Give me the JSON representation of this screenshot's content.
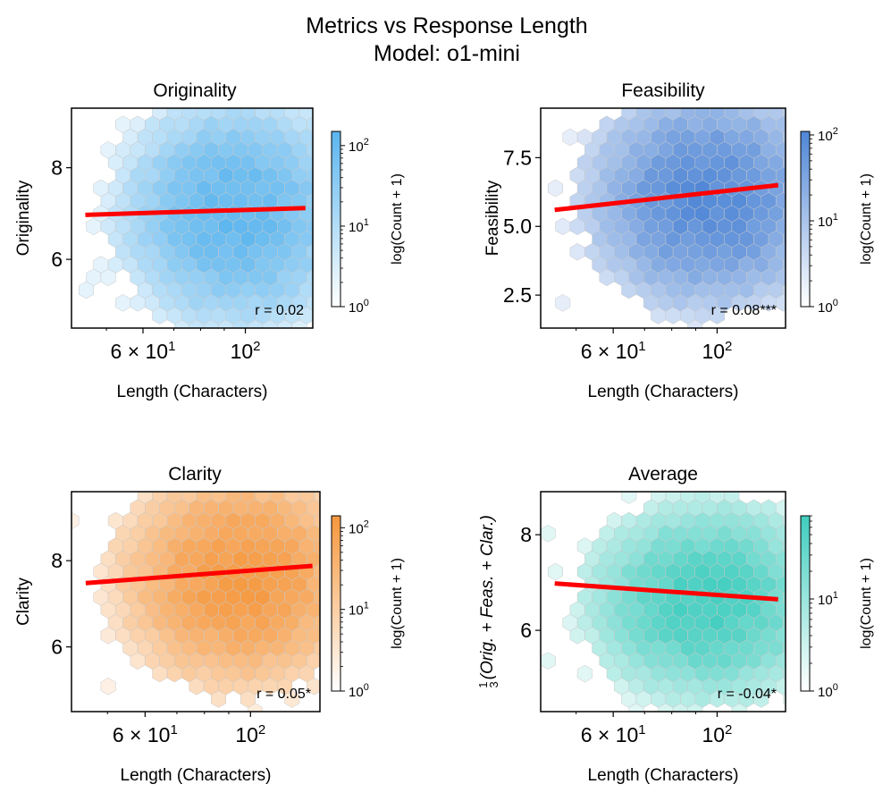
{
  "figure": {
    "title_line1": "Metrics vs Response Length",
    "title_line2": "Model: o1-mini"
  },
  "chart_data": [
    {
      "type": "hexbin",
      "title": "Originality",
      "xlabel": "Length (Characters)",
      "ylabel": "Originality",
      "x_scale": "log",
      "xlim": [
        42,
        140
      ],
      "ylim": [
        4.5,
        9.3
      ],
      "x_ticks": [
        {
          "value": 60,
          "label": "6 × 10",
          "sup": "1"
        },
        {
          "value": 100,
          "label": "10",
          "sup": "2"
        }
      ],
      "y_ticks": [
        {
          "value": 6,
          "label": "6"
        },
        {
          "value": 8,
          "label": "8"
        }
      ],
      "colormap": "#5BB5EE",
      "colorbar": {
        "label": "log(Count + 1)",
        "scale": "log",
        "range": [
          1,
          150
        ],
        "ticks": [
          {
            "value": 1,
            "sup": "0"
          },
          {
            "value": 10,
            "sup": "1"
          },
          {
            "value": 100,
            "sup": "2"
          }
        ]
      },
      "trend_line": {
        "color": "#FF0000",
        "x0": 45,
        "y0": 6.97,
        "x1": 135,
        "y1": 7.12
      },
      "annotation": "r = 0.02",
      "ycenter": 7.0,
      "yspread": 1.1,
      "xcenter_log": 1.98,
      "xspread_log": 0.11,
      "peak": 60
    },
    {
      "type": "hexbin",
      "title": "Feasibility",
      "xlabel": "Length (Characters)",
      "ylabel": "Feasibility",
      "x_scale": "log",
      "xlim": [
        42,
        140
      ],
      "ylim": [
        1.3,
        9.3
      ],
      "x_ticks": [
        {
          "value": 60,
          "label": "6 × 10",
          "sup": "1"
        },
        {
          "value": 100,
          "label": "10",
          "sup": "2"
        }
      ],
      "y_ticks": [
        {
          "value": 2.5,
          "label": "2.5"
        },
        {
          "value": 5.0,
          "label": "5.0"
        },
        {
          "value": 7.5,
          "label": "7.5"
        }
      ],
      "colormap": "#4F86D6",
      "colorbar": {
        "label": "log(Count + 1)",
        "scale": "log",
        "range": [
          1,
          110
        ],
        "ticks": [
          {
            "value": 1,
            "sup": "0"
          },
          {
            "value": 10,
            "sup": "1"
          },
          {
            "value": 100,
            "sup": "2"
          }
        ]
      },
      "trend_line": {
        "color": "#FF0000",
        "x0": 45,
        "y0": 5.6,
        "x1": 135,
        "y1": 6.5
      },
      "annotation": "r = 0.08***",
      "ycenter": 6.0,
      "yspread": 1.7,
      "xcenter_log": 1.98,
      "xspread_log": 0.11,
      "peak": 100
    },
    {
      "type": "hexbin",
      "title": "Clarity",
      "xlabel": "Length (Characters)",
      "ylabel": "Clarity",
      "x_scale": "log",
      "xlim": [
        42,
        140
      ],
      "ylim": [
        4.5,
        9.6
      ],
      "x_ticks": [
        {
          "value": 60,
          "label": "6 × 10",
          "sup": "1"
        },
        {
          "value": 100,
          "label": "10",
          "sup": "2"
        }
      ],
      "y_ticks": [
        {
          "value": 6,
          "label": "6"
        },
        {
          "value": 8,
          "label": "8"
        }
      ],
      "colormap": "#F5973D",
      "colorbar": {
        "label": "log(Count + 1)",
        "scale": "log",
        "range": [
          1,
          140
        ],
        "ticks": [
          {
            "value": 1,
            "sup": "0"
          },
          {
            "value": 10,
            "sup": "1"
          },
          {
            "value": 100,
            "sup": "2"
          }
        ]
      },
      "trend_line": {
        "color": "#FF0000",
        "x0": 45,
        "y0": 7.48,
        "x1": 135,
        "y1": 7.88
      },
      "annotation": "r = 0.05*",
      "ycenter": 7.6,
      "yspread": 1.1,
      "xcenter_log": 1.98,
      "xspread_log": 0.11,
      "peak": 110
    },
    {
      "type": "hexbin",
      "title": "Average",
      "xlabel": "Length (Characters)",
      "ylabel_parts": {
        "frac_num": "1",
        "frac_den": "3",
        "body": "(Orig. + Feas. + Clar.)"
      },
      "x_scale": "log",
      "xlim": [
        42,
        140
      ],
      "ylim": [
        4.3,
        8.9
      ],
      "x_ticks": [
        {
          "value": 60,
          "label": "6 × 10",
          "sup": "1"
        },
        {
          "value": 100,
          "label": "10",
          "sup": "2"
        }
      ],
      "y_ticks": [
        {
          "value": 6,
          "label": "6"
        },
        {
          "value": 8,
          "label": "8"
        }
      ],
      "colormap": "#3FCDBE",
      "colorbar": {
        "label": "log(Count + 1)",
        "scale": "log",
        "range": [
          1,
          80
        ],
        "ticks": [
          {
            "value": 1,
            "sup": "0"
          },
          {
            "value": 10,
            "sup": "1"
          }
        ]
      },
      "trend_line": {
        "color": "#FF0000",
        "x0": 45,
        "y0": 6.98,
        "x1": 135,
        "y1": 6.65
      },
      "annotation": "r = -0.04*",
      "ycenter": 6.6,
      "yspread": 0.9,
      "xcenter_log": 1.98,
      "xspread_log": 0.11,
      "peak": 70
    }
  ]
}
